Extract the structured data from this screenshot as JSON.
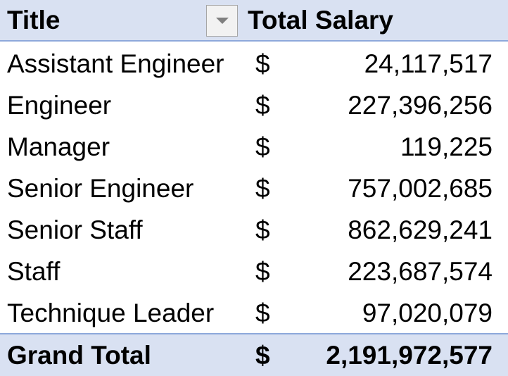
{
  "header": {
    "title_label": "Title",
    "salary_label": "Total Salary",
    "filter_icon": "chevron-down-icon"
  },
  "rows": [
    {
      "title": "Assistant Engineer",
      "currency": "$",
      "value": "24,117,517"
    },
    {
      "title": "Engineer",
      "currency": "$",
      "value": "227,396,256"
    },
    {
      "title": "Manager",
      "currency": "$",
      "value": "119,225"
    },
    {
      "title": "Senior Engineer",
      "currency": "$",
      "value": "757,002,685"
    },
    {
      "title": "Senior Staff",
      "currency": "$",
      "value": "862,629,241"
    },
    {
      "title": "Staff",
      "currency": "$",
      "value": "223,687,574"
    },
    {
      "title": "Technique Leader",
      "currency": "$",
      "value": "97,020,079"
    }
  ],
  "total": {
    "label": "Grand Total",
    "currency": "$",
    "value": "2,191,972,577"
  },
  "colors": {
    "header_bg": "#d9e1f2",
    "border": "#8ea9db"
  }
}
